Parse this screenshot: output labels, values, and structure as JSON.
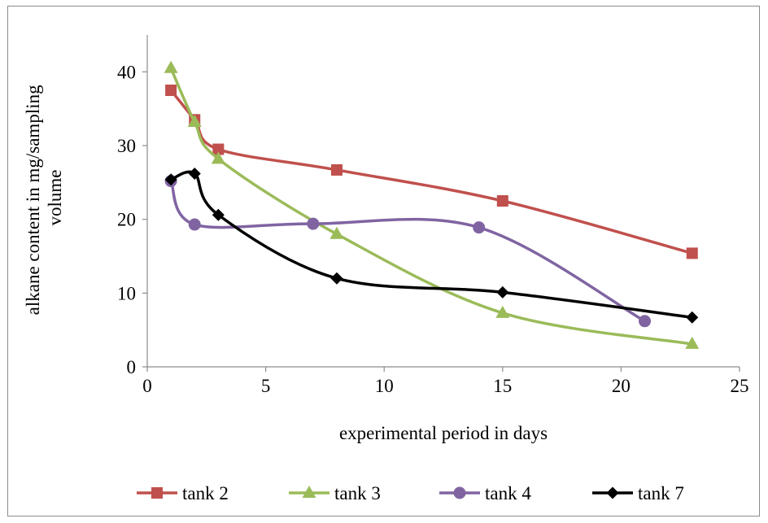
{
  "chart_data": {
    "type": "scatter",
    "title": "",
    "xlabel": "experimental period in days",
    "ylabel_lines": [
      "alkane content in mg/sampling",
      "volume"
    ],
    "xlim": [
      0,
      25
    ],
    "ylim": [
      0,
      45
    ],
    "xticks": [
      0,
      5,
      10,
      15,
      20,
      25
    ],
    "yticks": [
      0,
      10,
      20,
      30,
      40
    ],
    "grid": false,
    "smooth_lines": true,
    "legend_position": "bottom",
    "series": [
      {
        "name": "tank 2",
        "color": "#c0504d",
        "marker": "square",
        "x": [
          1,
          2,
          3,
          8,
          15,
          23
        ],
        "y": [
          37.5,
          33.5,
          29.5,
          26.7,
          22.5,
          15.4
        ]
      },
      {
        "name": "tank 3",
        "color": "#9bbb59",
        "marker": "triangle",
        "x": [
          1,
          2,
          3,
          8,
          15,
          23
        ],
        "y": [
          40.5,
          33.2,
          28.2,
          18.0,
          7.3,
          3.1
        ]
      },
      {
        "name": "tank 4",
        "color": "#8064a2",
        "marker": "circle",
        "x": [
          1,
          2,
          7,
          14,
          21
        ],
        "y": [
          25.2,
          19.3,
          19.4,
          18.9,
          6.2
        ]
      },
      {
        "name": "tank 7",
        "color": "#000000",
        "marker": "diamond",
        "x": [
          1,
          2,
          3,
          8,
          15,
          23
        ],
        "y": [
          25.4,
          26.2,
          20.6,
          12.0,
          10.1,
          6.7
        ]
      }
    ]
  }
}
